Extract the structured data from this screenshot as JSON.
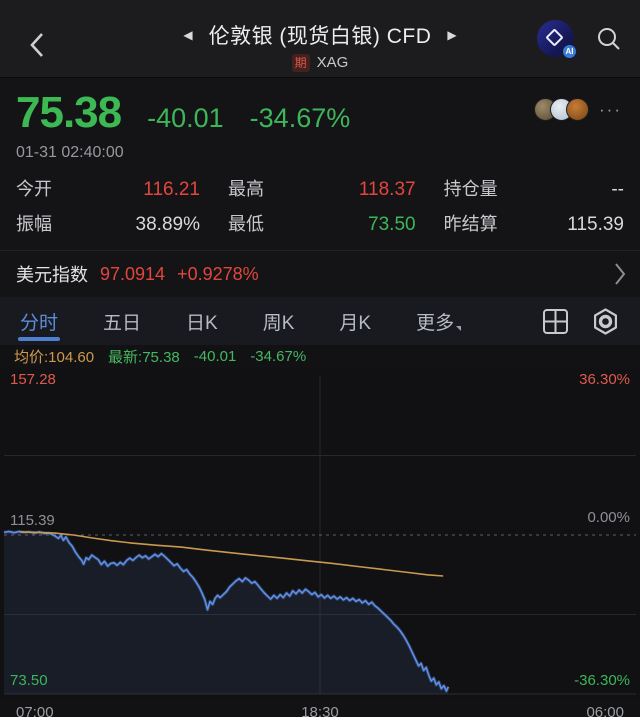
{
  "header": {
    "title": "伦敦银 (现货白银) CFD",
    "prev_arrow": "◀",
    "next_arrow": "▶",
    "badge": "期",
    "symbol": "XAG",
    "ai_badge": "AI"
  },
  "quote": {
    "price": "75.38",
    "change": "-40.01",
    "change_pct": "-34.67%",
    "timestamp": "01-31 02:40:00",
    "more": "···",
    "stats": [
      {
        "label": "今开",
        "value": "116.21"
      },
      {
        "label": "最高",
        "value": "118.37"
      },
      {
        "label": "持仓量",
        "value": "--"
      },
      {
        "label": "振幅",
        "value": "38.89%"
      },
      {
        "label": "最低",
        "value": "73.50"
      },
      {
        "label": "昨结算",
        "value": "115.39"
      }
    ]
  },
  "usd_index": {
    "label": "美元指数",
    "value": "97.0914",
    "change_pct": "+0.9278%"
  },
  "tabs": {
    "items": [
      "分时",
      "五日",
      "日K",
      "周K",
      "月K",
      "更多"
    ],
    "active": "分时"
  },
  "chart_legend": {
    "avg": "均价:104.60",
    "latest": "最新:75.38",
    "change": "-40.01",
    "change_pct": "-34.67%"
  },
  "chart_data": {
    "type": "line",
    "title": "伦敦银 分时图",
    "x_axis_labels": [
      "07:00",
      "18:30",
      "06:00"
    ],
    "y_left_labels": {
      "top": "157.28",
      "mid": "115.39",
      "bottom": "73.50"
    },
    "y_right_labels": {
      "top": "36.30%",
      "mid": "0.00%",
      "bottom": "-36.30%"
    },
    "ylim": [
      73.5,
      157.28
    ],
    "prev_settle": 115.39,
    "grid": {
      "h_quarters": true,
      "v_center": true,
      "zero_line_dashed": true
    },
    "series": [
      {
        "name": "price",
        "color": "#5f8fe8",
        "fill": "rgba(90,140,230,0.10)",
        "points": [
          [
            0.0,
            116.1
          ],
          [
            0.008,
            116.3
          ],
          [
            0.016,
            116.0
          ],
          [
            0.024,
            116.3
          ],
          [
            0.032,
            116.1
          ],
          [
            0.04,
            116.2
          ],
          [
            0.048,
            115.9
          ],
          [
            0.056,
            116.2
          ],
          [
            0.064,
            115.8
          ],
          [
            0.072,
            115.9
          ],
          [
            0.08,
            115.2
          ],
          [
            0.086,
            114.5
          ],
          [
            0.09,
            115.3
          ],
          [
            0.094,
            114.0
          ],
          [
            0.098,
            114.9
          ],
          [
            0.103,
            113.4
          ],
          [
            0.108,
            112.4
          ],
          [
            0.113,
            110.9
          ],
          [
            0.118,
            109.7
          ],
          [
            0.123,
            108.7
          ],
          [
            0.126,
            107.7
          ],
          [
            0.13,
            109.4
          ],
          [
            0.134,
            108.9
          ],
          [
            0.139,
            110.1
          ],
          [
            0.144,
            109.5
          ],
          [
            0.149,
            108.9
          ],
          [
            0.154,
            107.6
          ],
          [
            0.159,
            108.5
          ],
          [
            0.164,
            107.2
          ],
          [
            0.169,
            107.9
          ],
          [
            0.174,
            108.1
          ],
          [
            0.179,
            107.4
          ],
          [
            0.184,
            108.2
          ],
          [
            0.189,
            107.6
          ],
          [
            0.194,
            108.7
          ],
          [
            0.199,
            109.3
          ],
          [
            0.204,
            108.7
          ],
          [
            0.209,
            109.5
          ],
          [
            0.214,
            110.1
          ],
          [
            0.219,
            109.4
          ],
          [
            0.224,
            109.9
          ],
          [
            0.229,
            109.1
          ],
          [
            0.234,
            109.7
          ],
          [
            0.239,
            110.3
          ],
          [
            0.244,
            109.7
          ],
          [
            0.249,
            110.5
          ],
          [
            0.254,
            109.8
          ],
          [
            0.259,
            109.0
          ],
          [
            0.264,
            108.2
          ],
          [
            0.269,
            107.3
          ],
          [
            0.274,
            107.8
          ],
          [
            0.279,
            106.7
          ],
          [
            0.284,
            105.8
          ],
          [
            0.289,
            106.3
          ],
          [
            0.294,
            105.1
          ],
          [
            0.299,
            104.2
          ],
          [
            0.304,
            103.0
          ],
          [
            0.309,
            101.6
          ],
          [
            0.314,
            99.9
          ],
          [
            0.318,
            98.2
          ],
          [
            0.322,
            95.7
          ],
          [
            0.326,
            97.9
          ],
          [
            0.33,
            97.1
          ],
          [
            0.334,
            98.7
          ],
          [
            0.338,
            99.5
          ],
          [
            0.342,
            98.9
          ],
          [
            0.347,
            99.7
          ],
          [
            0.352,
            100.5
          ],
          [
            0.357,
            101.7
          ],
          [
            0.362,
            102.5
          ],
          [
            0.367,
            103.3
          ],
          [
            0.372,
            103.9
          ],
          [
            0.377,
            103.1
          ],
          [
            0.382,
            104.1
          ],
          [
            0.387,
            103.5
          ],
          [
            0.392,
            102.7
          ],
          [
            0.397,
            103.1
          ],
          [
            0.402,
            102.1
          ],
          [
            0.407,
            101.1
          ],
          [
            0.412,
            100.1
          ],
          [
            0.417,
            99.3
          ],
          [
            0.422,
            98.5
          ],
          [
            0.427,
            99.5
          ],
          [
            0.432,
            98.7
          ],
          [
            0.437,
            99.7
          ],
          [
            0.442,
            98.9
          ],
          [
            0.447,
            100.1
          ],
          [
            0.452,
            99.3
          ],
          [
            0.457,
            100.7
          ],
          [
            0.462,
            99.9
          ],
          [
            0.467,
            100.9
          ],
          [
            0.472,
            100.1
          ],
          [
            0.477,
            101.1
          ],
          [
            0.482,
            100.5
          ],
          [
            0.487,
            99.7
          ],
          [
            0.492,
            100.3
          ],
          [
            0.497,
            99.1
          ],
          [
            0.502,
            99.7
          ],
          [
            0.507,
            98.8
          ],
          [
            0.512,
            99.5
          ],
          [
            0.517,
            98.7
          ],
          [
            0.522,
            99.3
          ],
          [
            0.527,
            98.5
          ],
          [
            0.532,
            99.1
          ],
          [
            0.537,
            98.3
          ],
          [
            0.542,
            98.9
          ],
          [
            0.547,
            98.1
          ],
          [
            0.552,
            98.7
          ],
          [
            0.557,
            97.9
          ],
          [
            0.562,
            98.4
          ],
          [
            0.567,
            97.5
          ],
          [
            0.572,
            98.1
          ],
          [
            0.577,
            97.1
          ],
          [
            0.582,
            97.7
          ],
          [
            0.587,
            96.7
          ],
          [
            0.592,
            96.1
          ],
          [
            0.597,
            95.3
          ],
          [
            0.602,
            94.5
          ],
          [
            0.607,
            93.7
          ],
          [
            0.612,
            92.9
          ],
          [
            0.617,
            91.9
          ],
          [
            0.622,
            91.1
          ],
          [
            0.627,
            90.1
          ],
          [
            0.632,
            88.9
          ],
          [
            0.637,
            87.5
          ],
          [
            0.642,
            85.9
          ],
          [
            0.647,
            84.1
          ],
          [
            0.652,
            82.3
          ],
          [
            0.656,
            80.9
          ],
          [
            0.66,
            81.6
          ],
          [
            0.664,
            79.7
          ],
          [
            0.668,
            80.5
          ],
          [
            0.672,
            78.5
          ],
          [
            0.676,
            76.9
          ],
          [
            0.68,
            77.7
          ],
          [
            0.684,
            75.9
          ],
          [
            0.688,
            76.7
          ],
          [
            0.692,
            74.9
          ],
          [
            0.696,
            75.7
          ],
          [
            0.7,
            74.3
          ],
          [
            0.703,
            75.4
          ]
        ]
      },
      {
        "name": "avg",
        "color": "#c99a4e",
        "points": [
          [
            0.025,
            116.2
          ],
          [
            0.05,
            116.1
          ],
          [
            0.08,
            115.9
          ],
          [
            0.11,
            115.4
          ],
          [
            0.14,
            114.6
          ],
          [
            0.17,
            113.9
          ],
          [
            0.2,
            113.3
          ],
          [
            0.24,
            112.7
          ],
          [
            0.28,
            112.2
          ],
          [
            0.32,
            111.4
          ],
          [
            0.36,
            110.7
          ],
          [
            0.4,
            110.0
          ],
          [
            0.44,
            109.3
          ],
          [
            0.48,
            108.6
          ],
          [
            0.52,
            107.9
          ],
          [
            0.56,
            107.1
          ],
          [
            0.6,
            106.3
          ],
          [
            0.64,
            105.5
          ],
          [
            0.67,
            104.9
          ],
          [
            0.695,
            104.6
          ]
        ]
      }
    ]
  }
}
